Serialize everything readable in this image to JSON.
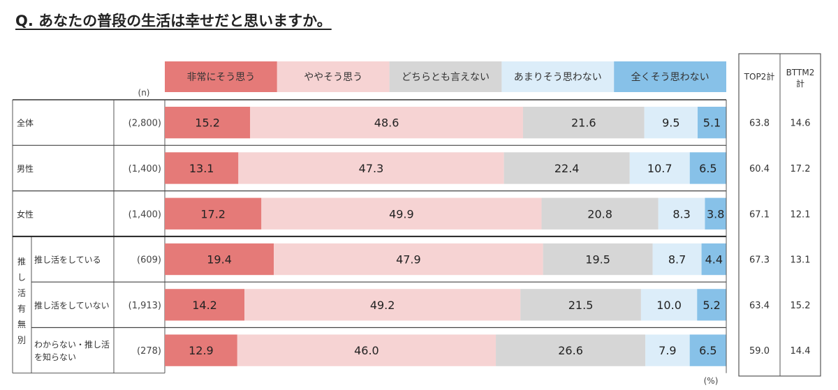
{
  "title": "Q. あなたの普段の生活は幸せだと思いますか。",
  "n_header": "(n)",
  "unit": "(%)",
  "extra_headers": [
    "TOP2計",
    "BTTM2計"
  ],
  "group_label": "推し活有無別",
  "colors": {
    "very": "#e57a78",
    "somewhat": "#f6d3d3",
    "neutral": "#d6d6d6",
    "not_much": "#dcedf9",
    "not_at_all": "#87c1e8"
  },
  "chart_data": {
    "type": "bar",
    "orientation": "horizontal",
    "stacked": true,
    "normalized": true,
    "categories": [
      "全体",
      "男性",
      "女性",
      "推し活をしている",
      "推し活をしていない",
      "わからない・推し活を知らない"
    ],
    "n": [
      "(2,800)",
      "(1,400)",
      "(1,400)",
      "(609)",
      "(1,913)",
      "(278)"
    ],
    "series": [
      {
        "name": "非常にそう思う",
        "values": [
          15.2,
          13.1,
          17.2,
          19.4,
          14.2,
          12.9
        ]
      },
      {
        "name": "ややそう思う",
        "values": [
          48.6,
          47.3,
          49.9,
          47.9,
          49.2,
          46.0
        ]
      },
      {
        "name": "どちらとも言えない",
        "values": [
          21.6,
          22.4,
          20.8,
          19.5,
          21.5,
          26.6
        ]
      },
      {
        "name": "あまりそう思わない",
        "values": [
          9.5,
          10.7,
          8.3,
          8.7,
          10.0,
          7.9
        ]
      },
      {
        "name": "全くそう思わない",
        "values": [
          5.1,
          6.5,
          3.8,
          4.4,
          5.2,
          6.5
        ]
      }
    ],
    "top2": [
      63.8,
      60.4,
      67.1,
      67.3,
      63.4,
      59.0
    ],
    "bttm2": [
      14.6,
      17.2,
      12.1,
      13.1,
      15.2,
      14.4
    ],
    "xlim": [
      0,
      100
    ],
    "legend": "top"
  }
}
